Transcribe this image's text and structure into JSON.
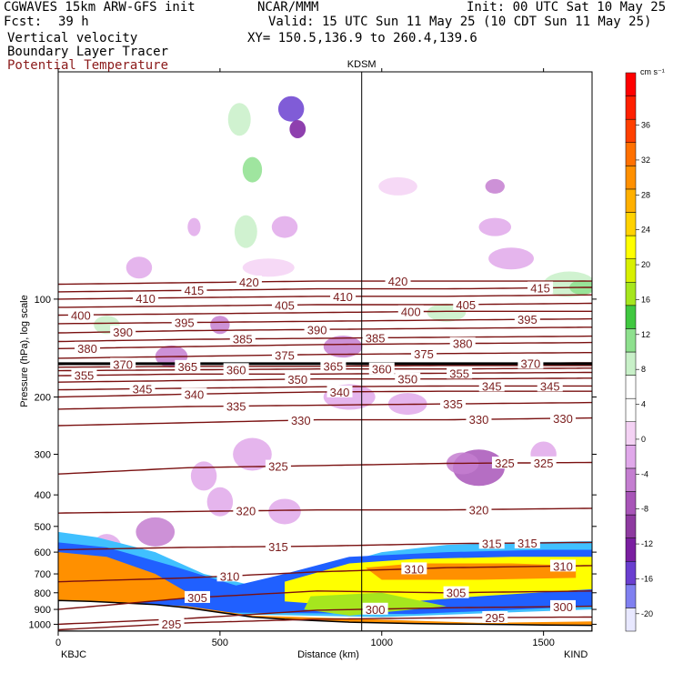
{
  "header": {
    "model": "CGWAVES 15km ARW-GFS init",
    "center": "NCAR/MMM",
    "init": "Init: 00 UTC Sat 10 May 25",
    "fcst_label": "Fcst:",
    "fcst_value": "39 h",
    "valid": "Valid: 15 UTC Sun 11 May 25 (10 CDT Sun 11 May 25)",
    "field1": "Vertical velocity",
    "field2": "Boundary Layer Tracer",
    "field3": "Potential Temperature",
    "xy": "XY= 150.5,136.9 to 260.4,139.6",
    "field3_color": "#8b1a1a"
  },
  "chart_data": {
    "type": "cross-section",
    "station_mark": "KDSM",
    "station_mark_x_km": 938,
    "xlabel": "Distance (km)",
    "ylabel": "Pressure (hPa), log scale",
    "xlim": [
      0,
      1650
    ],
    "ylim": [
      1050,
      20
    ],
    "x_ticks": [
      "0",
      "500",
      "1000",
      "1500"
    ],
    "x_tick_values": [
      0,
      500,
      1000,
      1500
    ],
    "y_ticks": [
      "100",
      "200",
      "300",
      "400",
      "500",
      "600",
      "700",
      "800",
      "900",
      "1000"
    ],
    "y_tick_values": [
      100,
      200,
      300,
      400,
      500,
      600,
      700,
      800,
      900,
      1000
    ],
    "left_endpoint": "KBJC",
    "right_endpoint": "KIND",
    "colorbar": {
      "units": "cm s⁻¹",
      "labels": [
        "36",
        "32",
        "28",
        "24",
        "20",
        "16",
        "12",
        "8",
        "4",
        "0",
        "-4",
        "-8",
        "-12",
        "-16",
        "-20"
      ],
      "colors": [
        "#e8e8ff",
        "#8080f0",
        "#6a3fd0",
        "#7a1fa0",
        "#8e3aa0",
        "#a855b8",
        "#c47ed0",
        "#e0a8ea",
        "#f4d2f4",
        "#ffffff",
        "#ffffff",
        "#c8f0c8",
        "#8ee08e",
        "#40c840",
        "#a6e61e",
        "#d8f000",
        "#ffff00",
        "#ffd200",
        "#ffb000",
        "#ff9000",
        "#ff7000",
        "#ff4000",
        "#ff2000",
        "#ff0000"
      ]
    },
    "theta_contours": [
      {
        "theta": 295,
        "p": [
          1040,
          990,
          965,
          955,
          950
        ],
        "labels": [
          {
            "x": 350,
            "text": "295"
          },
          {
            "x": 1350,
            "text": "295"
          }
        ]
      },
      {
        "theta": 300,
        "p": [
          1000,
          960,
          905,
          890,
          880
        ],
        "labels": [
          {
            "x": 980,
            "text": "300"
          },
          {
            "x": 1560,
            "text": "300"
          }
        ]
      },
      {
        "theta": 305,
        "p": [
          900,
          830,
          790,
          800,
          790
        ],
        "labels": [
          {
            "x": 430,
            "text": "305"
          },
          {
            "x": 1230,
            "text": "305"
          }
        ]
      },
      {
        "theta": 310,
        "p": [
          740,
          720,
          690,
          670,
          660
        ],
        "labels": [
          {
            "x": 530,
            "text": "310"
          },
          {
            "x": 1100,
            "text": "310"
          },
          {
            "x": 1560,
            "text": "310"
          }
        ]
      },
      {
        "theta": 315,
        "p": [
          590,
          580,
          575,
          565,
          560
        ],
        "labels": [
          {
            "x": 680,
            "text": "315"
          },
          {
            "x": 1340,
            "text": "315"
          },
          {
            "x": 1450,
            "text": "315"
          }
        ]
      },
      {
        "theta": 320,
        "p": [
          455,
          450,
          445,
          445,
          440
        ],
        "labels": [
          {
            "x": 580,
            "text": "320"
          },
          {
            "x": 1300,
            "text": "320"
          }
        ]
      },
      {
        "theta": 325,
        "p": [
          345,
          330,
          325,
          320,
          318
        ],
        "labels": [
          {
            "x": 680,
            "text": "325"
          },
          {
            "x": 1380,
            "text": "325"
          },
          {
            "x": 1500,
            "text": "325"
          }
        ]
      },
      {
        "theta": 330,
        "p": [
          245,
          240,
          235,
          235,
          232
        ],
        "labels": [
          {
            "x": 750,
            "text": "330"
          },
          {
            "x": 1300,
            "text": "330"
          },
          {
            "x": 1560,
            "text": "330"
          }
        ]
      },
      {
        "theta": 335,
        "p": [
          218,
          214,
          212,
          210,
          208
        ],
        "labels": [
          {
            "x": 550,
            "text": "335"
          },
          {
            "x": 1220,
            "text": "335"
          }
        ]
      },
      {
        "theta": 340,
        "p": [
          200,
          196,
          193,
          192,
          192
        ],
        "labels": [
          {
            "x": 420,
            "text": "340"
          },
          {
            "x": 870,
            "text": "340"
          }
        ]
      },
      {
        "theta": 345,
        "p": [
          190,
          188,
          186,
          185,
          185
        ],
        "labels": [
          {
            "x": 260,
            "text": "345"
          },
          {
            "x": 1340,
            "text": "345"
          },
          {
            "x": 1520,
            "text": "345"
          }
        ]
      },
      {
        "theta": 350,
        "p": [
          180,
          178,
          176,
          176,
          175
        ],
        "labels": [
          {
            "x": 740,
            "text": "350"
          },
          {
            "x": 1080,
            "text": "350"
          }
        ]
      },
      {
        "theta": 355,
        "p": [
          172,
          170,
          170,
          169,
          168
        ],
        "labels": [
          {
            "x": 80,
            "text": "355"
          },
          {
            "x": 1240,
            "text": "355"
          }
        ]
      },
      {
        "theta": 360,
        "p": [
          166,
          165,
          164,
          164,
          163
        ],
        "labels": [
          {
            "x": 550,
            "text": "360"
          },
          {
            "x": 1000,
            "text": "360"
          }
        ]
      },
      {
        "theta": 365,
        "p": [
          162,
          161,
          161,
          160,
          160
        ],
        "labels": [
          {
            "x": 400,
            "text": "365"
          },
          {
            "x": 850,
            "text": "365"
          }
        ]
      },
      {
        "theta": 370,
        "p": [
          159,
          158,
          158,
          158,
          157
        ],
        "labels": [
          {
            "x": 200,
            "text": "370"
          },
          {
            "x": 1460,
            "text": "370"
          }
        ]
      },
      {
        "theta": 375,
        "p": [
          152,
          150,
          148,
          147,
          146
        ],
        "labels": [
          {
            "x": 700,
            "text": "375"
          },
          {
            "x": 1130,
            "text": "375"
          }
        ]
      },
      {
        "theta": 380,
        "p": [
          142,
          140,
          138,
          137,
          136
        ],
        "labels": [
          {
            "x": 90,
            "text": "380"
          },
          {
            "x": 1250,
            "text": "380"
          }
        ]
      },
      {
        "theta": 385,
        "p": [
          135,
          133,
          132,
          131,
          130
        ],
        "labels": [
          {
            "x": 570,
            "text": "385"
          },
          {
            "x": 980,
            "text": "385"
          }
        ]
      },
      {
        "theta": 390,
        "p": [
          127,
          125,
          124,
          123,
          122
        ],
        "labels": [
          {
            "x": 200,
            "text": "390"
          },
          {
            "x": 800,
            "text": "390"
          }
        ]
      },
      {
        "theta": 395,
        "p": [
          119,
          118,
          117,
          116,
          115
        ],
        "labels": [
          {
            "x": 390,
            "text": "395"
          },
          {
            "x": 1450,
            "text": "395"
          }
        ]
      },
      {
        "theta": 400,
        "p": [
          112,
          111,
          110,
          109,
          109
        ],
        "labels": [
          {
            "x": 70,
            "text": "400"
          },
          {
            "x": 1090,
            "text": "400"
          }
        ]
      },
      {
        "theta": 405,
        "p": [
          106,
          105,
          104,
          104,
          103
        ],
        "labels": [
          {
            "x": 700,
            "text": "405"
          },
          {
            "x": 1260,
            "text": "405"
          }
        ]
      },
      {
        "theta": 410,
        "p": [
          100,
          99,
          98,
          98,
          97
        ],
        "labels": [
          {
            "x": 270,
            "text": "410"
          },
          {
            "x": 880,
            "text": "410"
          }
        ]
      },
      {
        "theta": 415,
        "p": [
          95,
          94,
          93,
          93,
          92
        ],
        "labels": [
          {
            "x": 420,
            "text": "415"
          },
          {
            "x": 1490,
            "text": "415"
          }
        ]
      },
      {
        "theta": 420,
        "p": [
          90,
          89,
          88,
          88,
          88
        ],
        "labels": [
          {
            "x": 590,
            "text": "420"
          },
          {
            "x": 1050,
            "text": "420"
          }
        ]
      }
    ],
    "theta_x_nodes_km": [
      0,
      400,
      800,
      1200,
      1650
    ],
    "tropopause_p": 158,
    "terrain": {
      "x": [
        0,
        100,
        200,
        300,
        400,
        500,
        600,
        700,
        800,
        900,
        1000,
        1100,
        1200,
        1300,
        1400,
        1500,
        1650
      ],
      "p": [
        845,
        850,
        860,
        870,
        890,
        920,
        950,
        965,
        975,
        985,
        990,
        995,
        998,
        1000,
        1002,
        1005,
        1008
      ]
    }
  }
}
